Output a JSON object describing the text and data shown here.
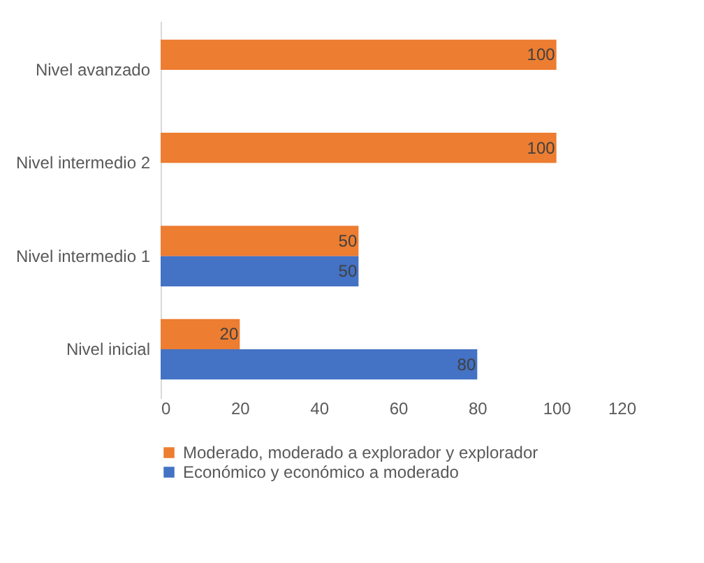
{
  "chart_data": {
    "type": "bar",
    "orientation": "horizontal",
    "categories": [
      "Nivel avanzado",
      "Nivel intermedio 2",
      "Nivel intermedio 1",
      "Nivel inicial"
    ],
    "series": [
      {
        "name": "Moderado, moderado a explorador y explorador",
        "color": "#ed7d31",
        "values": [
          100,
          100,
          50,
          20
        ]
      },
      {
        "name": "Económico y económico a moderado",
        "color": "#4472c4",
        "values": [
          null,
          null,
          50,
          80
        ]
      }
    ],
    "xlim": [
      0,
      120
    ],
    "xticks": [
      0,
      20,
      40,
      60,
      80,
      100,
      120
    ],
    "grid": false,
    "legend": "bottom",
    "data_labels": true
  }
}
